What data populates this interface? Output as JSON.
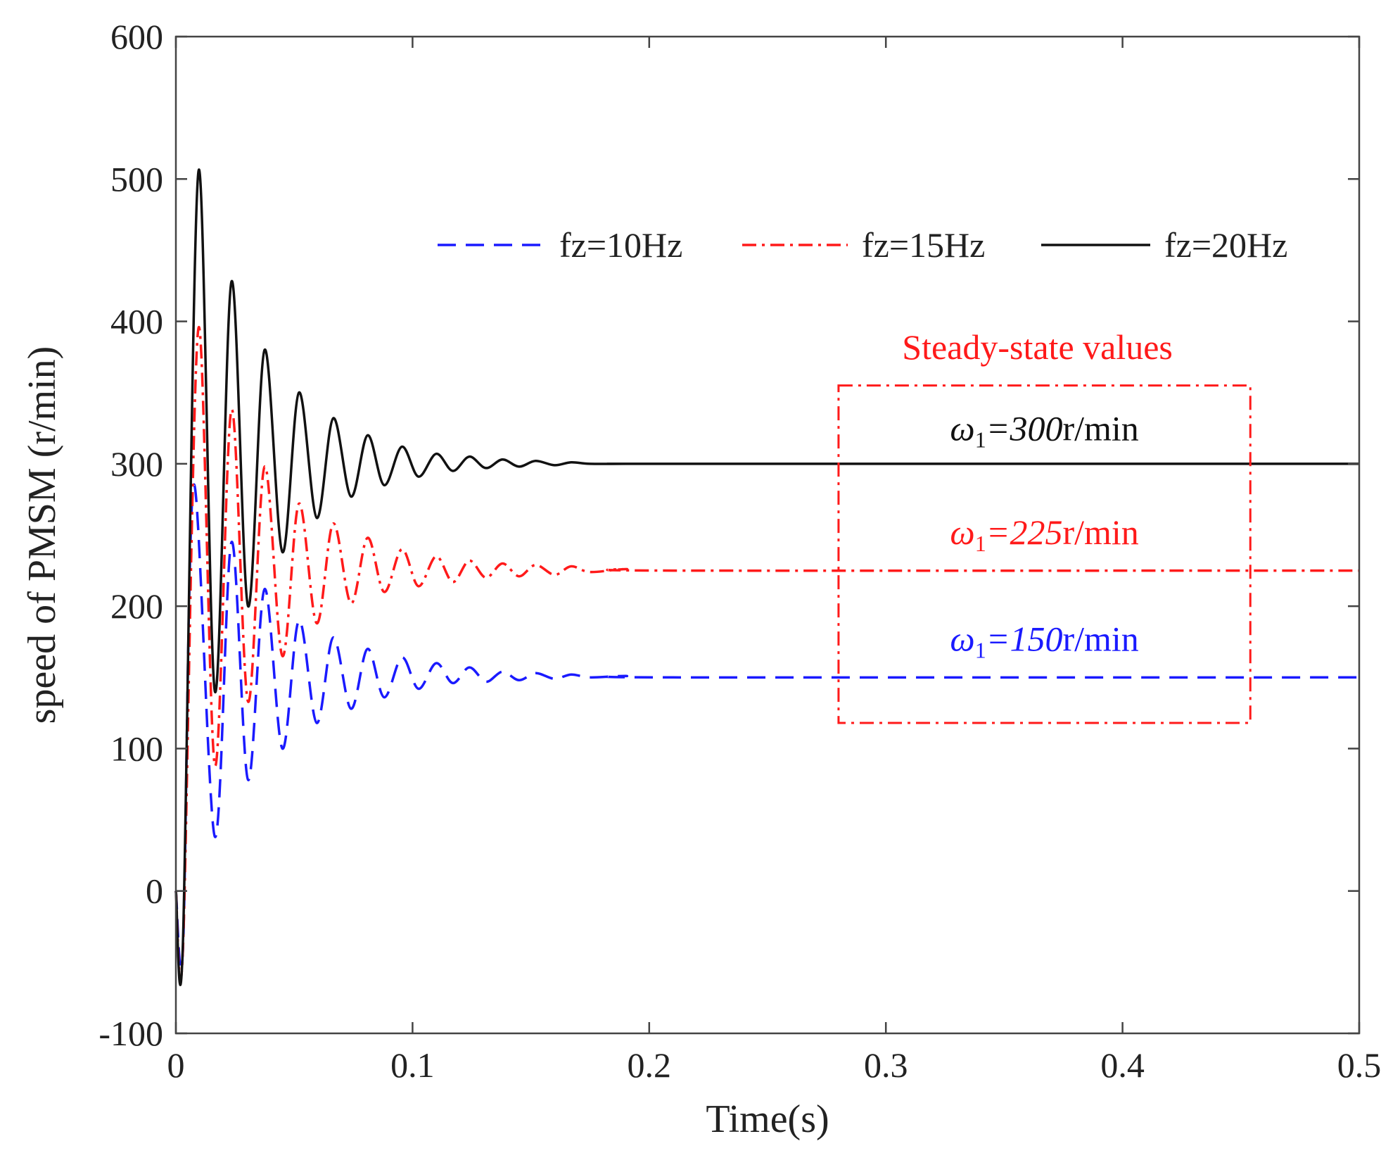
{
  "chart_data": {
    "type": "line",
    "title": "",
    "xlabel": "Time(s)",
    "ylabel": "speed of PMSM (r/min)",
    "xlim": [
      0,
      0.5
    ],
    "ylim": [
      -100,
      600
    ],
    "xticks": [
      0,
      0.1,
      0.2,
      0.3,
      0.4,
      0.5
    ],
    "yticks": [
      -100,
      0,
      100,
      200,
      300,
      400,
      500,
      600
    ],
    "xtick_labels": [
      "0",
      "0.1",
      "0.2",
      "0.3",
      "0.4",
      "0.5"
    ],
    "ytick_labels": [
      "-100",
      "0",
      "100",
      "200",
      "300",
      "400",
      "500",
      "600"
    ],
    "grid": false,
    "legend_position": "top-right",
    "series": [
      {
        "name": "fz=10Hz",
        "color": "#1a1aff",
        "style": "dashed",
        "steady_state": 150,
        "x": [
          0,
          0.003,
          0.0075,
          0.0165,
          0.0235,
          0.0305,
          0.0375,
          0.045,
          0.052,
          0.0595,
          0.0665,
          0.074,
          0.081,
          0.088,
          0.0955,
          0.1025,
          0.11,
          0.117,
          0.124,
          0.131,
          0.138,
          0.145,
          0.152,
          0.16,
          0.167,
          0.175,
          0.19,
          0.21,
          0.5
        ],
        "values": [
          0,
          -40,
          285,
          38,
          245,
          78,
          212,
          100,
          190,
          118,
          178,
          128,
          170,
          136,
          164,
          142,
          160,
          146,
          157,
          147,
          154,
          148,
          153,
          149,
          152,
          150,
          151,
          150,
          150
        ]
      },
      {
        "name": "fz=15Hz",
        "color": "#ff1a1a",
        "style": "dash-dot",
        "steady_state": 225,
        "x": [
          0,
          0.003,
          0.0095,
          0.0165,
          0.0235,
          0.0305,
          0.0375,
          0.045,
          0.052,
          0.0595,
          0.0665,
          0.074,
          0.081,
          0.088,
          0.0955,
          0.1025,
          0.11,
          0.117,
          0.124,
          0.131,
          0.138,
          0.145,
          0.152,
          0.16,
          0.167,
          0.175,
          0.19,
          0.21,
          0.5
        ],
        "values": [
          0,
          -40,
          395,
          88,
          338,
          133,
          298,
          165,
          272,
          188,
          258,
          202,
          248,
          210,
          240,
          214,
          235,
          217,
          232,
          220,
          230,
          221,
          229,
          222,
          228,
          224,
          226,
          225,
          225
        ]
      },
      {
        "name": "fz=20Hz",
        "color": "#111111",
        "style": "solid",
        "steady_state": 300,
        "x": [
          0,
          0.003,
          0.0095,
          0.0165,
          0.0235,
          0.0305,
          0.0375,
          0.045,
          0.052,
          0.0595,
          0.0665,
          0.074,
          0.081,
          0.088,
          0.0955,
          0.1025,
          0.11,
          0.117,
          0.124,
          0.131,
          0.138,
          0.145,
          0.152,
          0.16,
          0.167,
          0.175,
          0.19,
          0.21,
          0.5
        ],
        "values": [
          0,
          -35,
          505,
          140,
          428,
          200,
          380,
          238,
          350,
          262,
          332,
          277,
          320,
          285,
          312,
          291,
          307,
          295,
          305,
          297,
          303,
          298,
          302,
          299,
          301,
          300,
          300,
          300,
          300
        ]
      }
    ],
    "annotations": {
      "box_title": "Steady-state values",
      "box_color": "#ff1a1a",
      "box_x_range": [
        0.28,
        0.454
      ],
      "box_y_range": [
        118,
        355
      ],
      "labels": [
        {
          "symbol": "ω",
          "subscript": "1",
          "eq": "=",
          "value": "300",
          "unit": "r/min",
          "color": "#111111",
          "y": 325
        },
        {
          "symbol": "ω",
          "subscript": "1",
          "eq": "=",
          "value": "225",
          "unit": "r/min",
          "color": "#ff1a1a",
          "y": 252
        },
        {
          "symbol": "ω",
          "subscript": "1",
          "eq": "=",
          "value": "150",
          "unit": "r/min",
          "color": "#1a1aff",
          "y": 177
        }
      ]
    }
  }
}
